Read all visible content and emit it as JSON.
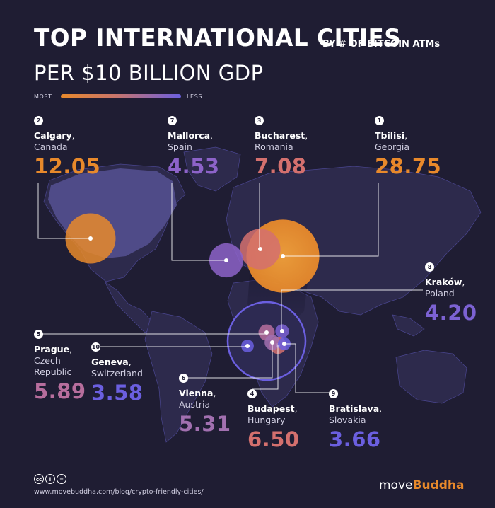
{
  "header": {
    "title": "TOP INTERNATIONAL CITIES",
    "title_suffix": "BY # OF BITCOIN ATMs",
    "subtitle": "PER $10 BILLION GDP"
  },
  "legend": {
    "most": "MOST",
    "less": "LESS",
    "colors": [
      "#e8892b",
      "#6b5fe0"
    ]
  },
  "footer": {
    "url": "www.movebuddha.com/blog/crypto-friendly-cities/",
    "brand_move": "move",
    "brand_buddha": "Buddha",
    "cc_icons": [
      "cc-icon",
      "by-icon",
      "nd-icon"
    ]
  },
  "chart_data": {
    "type": "table",
    "title": "TOP INTERNATIONAL CITIES BY # OF BITCOIN ATMs PER $10 BILLION GDP",
    "rows": [
      {
        "rank": "1",
        "city": "Tbilisi",
        "country": "Georgia",
        "value": 28.75,
        "value_text": "28.75",
        "color": "#e8892b"
      },
      {
        "rank": "2",
        "city": "Calgary",
        "country": "Canada",
        "value": 12.05,
        "value_text": "12.05",
        "color": "#e8892b"
      },
      {
        "rank": "3",
        "city": "Bucharest",
        "country": "Romania",
        "value": 7.08,
        "value_text": "7.08",
        "color": "#d4706e"
      },
      {
        "rank": "4",
        "city": "Budapest",
        "country": "Hungary",
        "value": 6.5,
        "value_text": "6.50",
        "color": "#d4706e"
      },
      {
        "rank": "5",
        "city": "Prague",
        "country": "Czech Republic",
        "value": 5.89,
        "value_text": "5.89",
        "color": "#b76e9d"
      },
      {
        "rank": "6",
        "city": "Vienna",
        "country": "Austria",
        "value": 5.31,
        "value_text": "5.31",
        "color": "#a270b0"
      },
      {
        "rank": "7",
        "city": "Mallorca",
        "country": "Spain",
        "value": 4.53,
        "value_text": "4.53",
        "color": "#8d63c9"
      },
      {
        "rank": "8",
        "city": "Kraków",
        "country": "Poland",
        "value": 4.2,
        "value_text": "4.20",
        "color": "#7c62d3"
      },
      {
        "rank": "9",
        "city": "Bratislava",
        "country": "Slovakia",
        "value": 3.66,
        "value_text": "3.66",
        "color": "#6b5fe0"
      },
      {
        "rank": "10",
        "city": "Geneva",
        "country": "Switzerland",
        "value": 3.58,
        "value_text": "3.58",
        "color": "#6b5fe0"
      }
    ]
  }
}
